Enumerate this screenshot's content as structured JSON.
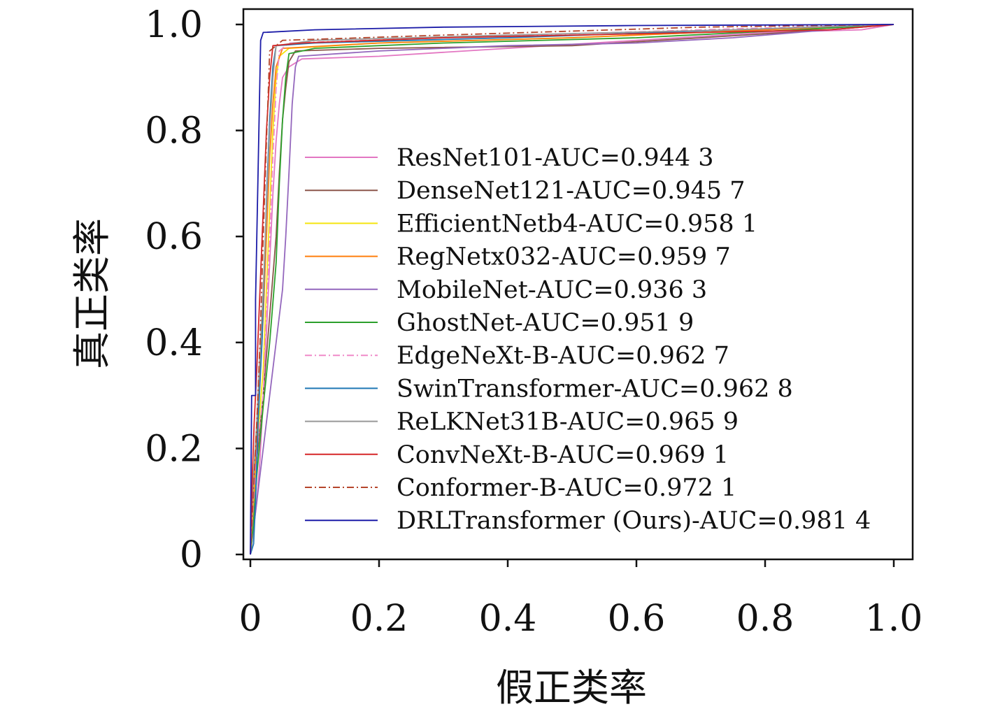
{
  "chart_data": {
    "type": "line",
    "title": "",
    "xlabel": "假正类率",
    "ylabel": "真正类率",
    "xlim": [
      0,
      1.0
    ],
    "ylim": [
      0,
      1.0
    ],
    "x_ticks": [
      "0",
      "0.2",
      "0.4",
      "0.6",
      "0.8",
      "1.0"
    ],
    "y_ticks": [
      "0",
      "0.2",
      "0.4",
      "0.6",
      "0.8",
      "1.0"
    ],
    "grid": false,
    "legend_position": "lower-right",
    "series": [
      {
        "name": "ResNet101-AUC=0.944 3",
        "color": "#e377c2",
        "dash": "solid",
        "points": [
          [
            0,
            0
          ],
          [
            0.005,
            0.05
          ],
          [
            0.01,
            0.1
          ],
          [
            0.015,
            0.18
          ],
          [
            0.02,
            0.3
          ],
          [
            0.025,
            0.42
          ],
          [
            0.03,
            0.55
          ],
          [
            0.035,
            0.68
          ],
          [
            0.04,
            0.78
          ],
          [
            0.045,
            0.85
          ],
          [
            0.05,
            0.9
          ],
          [
            0.06,
            0.92
          ],
          [
            0.08,
            0.935
          ],
          [
            0.2,
            0.94
          ],
          [
            0.4,
            0.955
          ],
          [
            0.6,
            0.97
          ],
          [
            0.8,
            0.985
          ],
          [
            0.95,
            0.99
          ],
          [
            1,
            1
          ]
        ]
      },
      {
        "name": "DenseNet121-AUC=0.945 7",
        "color": "#8c564b",
        "dash": "solid",
        "points": [
          [
            0,
            0
          ],
          [
            0.005,
            0.08
          ],
          [
            0.01,
            0.18
          ],
          [
            0.02,
            0.3
          ],
          [
            0.03,
            0.45
          ],
          [
            0.04,
            0.6
          ],
          [
            0.045,
            0.72
          ],
          [
            0.05,
            0.82
          ],
          [
            0.055,
            0.88
          ],
          [
            0.06,
            0.93
          ],
          [
            0.07,
            0.95
          ],
          [
            0.2,
            0.955
          ],
          [
            0.5,
            0.96
          ],
          [
            0.7,
            0.975
          ],
          [
            0.9,
            0.99
          ],
          [
            1,
            1
          ]
        ]
      },
      {
        "name": "EfficientNetb4-AUC=0.958 1",
        "color": "#f5e50f",
        "dash": "solid",
        "points": [
          [
            0,
            0
          ],
          [
            0.005,
            0.1
          ],
          [
            0.01,
            0.2
          ],
          [
            0.02,
            0.35
          ],
          [
            0.025,
            0.5
          ],
          [
            0.03,
            0.65
          ],
          [
            0.035,
            0.8
          ],
          [
            0.04,
            0.9
          ],
          [
            0.045,
            0.94
          ],
          [
            0.06,
            0.955
          ],
          [
            0.2,
            0.965
          ],
          [
            0.5,
            0.975
          ],
          [
            0.8,
            0.99
          ],
          [
            1,
            1
          ]
        ]
      },
      {
        "name": "RegNetx032-AUC=0.959 7",
        "color": "#ff7f0e",
        "dash": "solid",
        "points": [
          [
            0,
            0
          ],
          [
            0.005,
            0.12
          ],
          [
            0.01,
            0.22
          ],
          [
            0.015,
            0.33
          ],
          [
            0.02,
            0.45
          ],
          [
            0.025,
            0.6
          ],
          [
            0.03,
            0.75
          ],
          [
            0.035,
            0.85
          ],
          [
            0.04,
            0.92
          ],
          [
            0.05,
            0.955
          ],
          [
            0.2,
            0.965
          ],
          [
            0.5,
            0.975
          ],
          [
            0.8,
            0.99
          ],
          [
            1,
            1
          ]
        ]
      },
      {
        "name": "MobileNet-AUC=0.936 3",
        "color": "#9467bd",
        "dash": "solid",
        "points": [
          [
            0,
            0
          ],
          [
            0.01,
            0.1
          ],
          [
            0.02,
            0.2
          ],
          [
            0.03,
            0.3
          ],
          [
            0.04,
            0.4
          ],
          [
            0.05,
            0.5
          ],
          [
            0.055,
            0.6
          ],
          [
            0.06,
            0.72
          ],
          [
            0.065,
            0.85
          ],
          [
            0.07,
            0.92
          ],
          [
            0.075,
            0.94
          ],
          [
            0.2,
            0.95
          ],
          [
            0.4,
            0.96
          ],
          [
            0.6,
            0.965
          ],
          [
            0.75,
            0.975
          ],
          [
            0.9,
            0.99
          ],
          [
            1,
            1
          ]
        ]
      },
      {
        "name": "GhostNet-AUC=0.951 9",
        "color": "#2ca02c",
        "dash": "solid",
        "points": [
          [
            0,
            0
          ],
          [
            0.005,
            0.06
          ],
          [
            0.01,
            0.15
          ],
          [
            0.02,
            0.28
          ],
          [
            0.03,
            0.4
          ],
          [
            0.04,
            0.55
          ],
          [
            0.045,
            0.7
          ],
          [
            0.05,
            0.82
          ],
          [
            0.055,
            0.9
          ],
          [
            0.06,
            0.945
          ],
          [
            0.1,
            0.955
          ],
          [
            0.3,
            0.965
          ],
          [
            0.6,
            0.975
          ],
          [
            0.85,
            0.99
          ],
          [
            1,
            1
          ]
        ]
      },
      {
        "name": "EdgeNeXt-B-AUC=0.962 7",
        "color": "#f08ac8",
        "dash": "dashdot",
        "points": [
          [
            0,
            0
          ],
          [
            0.005,
            0.1
          ],
          [
            0.01,
            0.2
          ],
          [
            0.02,
            0.3
          ],
          [
            0.025,
            0.45
          ],
          [
            0.03,
            0.6
          ],
          [
            0.035,
            0.75
          ],
          [
            0.04,
            0.88
          ],
          [
            0.045,
            0.95
          ],
          [
            0.06,
            0.965
          ],
          [
            0.3,
            0.975
          ],
          [
            0.7,
            0.99
          ],
          [
            1,
            1
          ]
        ]
      },
      {
        "name": "SwinTransformer-AUC=0.962 8",
        "color": "#1f77b4",
        "dash": "solid",
        "points": [
          [
            0,
            0
          ],
          [
            0.005,
            0.02
          ],
          [
            0.008,
            0.1
          ],
          [
            0.012,
            0.25
          ],
          [
            0.018,
            0.4
          ],
          [
            0.022,
            0.55
          ],
          [
            0.026,
            0.7
          ],
          [
            0.03,
            0.82
          ],
          [
            0.035,
            0.92
          ],
          [
            0.04,
            0.96
          ],
          [
            0.1,
            0.965
          ],
          [
            0.4,
            0.975
          ],
          [
            0.75,
            0.99
          ],
          [
            1,
            1
          ]
        ]
      },
      {
        "name": "ReLKNet31B-AUC=0.965 9",
        "color": "#999999",
        "dash": "solid",
        "points": [
          [
            0,
            0
          ],
          [
            0.005,
            0.15
          ],
          [
            0.01,
            0.25
          ],
          [
            0.015,
            0.38
          ],
          [
            0.02,
            0.5
          ],
          [
            0.025,
            0.65
          ],
          [
            0.03,
            0.8
          ],
          [
            0.035,
            0.9
          ],
          [
            0.04,
            0.96
          ],
          [
            0.1,
            0.97
          ],
          [
            0.4,
            0.98
          ],
          [
            0.75,
            0.99
          ],
          [
            1,
            1
          ]
        ]
      },
      {
        "name": "ConvNeXt-B-AUC=0.969 1",
        "color": "#d62728",
        "dash": "solid",
        "points": [
          [
            0,
            0
          ],
          [
            0.003,
            0.15
          ],
          [
            0.006,
            0.25
          ],
          [
            0.01,
            0.35
          ],
          [
            0.015,
            0.5
          ],
          [
            0.02,
            0.65
          ],
          [
            0.025,
            0.8
          ],
          [
            0.03,
            0.9
          ],
          [
            0.035,
            0.96
          ],
          [
            0.08,
            0.965
          ],
          [
            0.3,
            0.975
          ],
          [
            0.7,
            0.985
          ],
          [
            0.9,
            0.99
          ],
          [
            1,
            1
          ]
        ]
      },
      {
        "name": "Conformer-B-AUC=0.972 1",
        "color": "#b5452b",
        "dash": "dashdot",
        "points": [
          [
            0,
            0
          ],
          [
            0.005,
            0.12
          ],
          [
            0.01,
            0.25
          ],
          [
            0.015,
            0.4
          ],
          [
            0.02,
            0.6
          ],
          [
            0.025,
            0.78
          ],
          [
            0.028,
            0.88
          ],
          [
            0.03,
            0.95
          ],
          [
            0.05,
            0.97
          ],
          [
            0.3,
            0.98
          ],
          [
            0.7,
            0.995
          ],
          [
            1,
            1
          ]
        ]
      },
      {
        "name": "DRLTransformer (Ours)-AUC=0.981 4",
        "color": "#1c1ca8",
        "dash": "solid",
        "points": [
          [
            0,
            0
          ],
          [
            0.002,
            0.3
          ],
          [
            0.008,
            0.3
          ],
          [
            0.008,
            0.48
          ],
          [
            0.01,
            0.6
          ],
          [
            0.012,
            0.72
          ],
          [
            0.014,
            0.85
          ],
          [
            0.016,
            0.97
          ],
          [
            0.02,
            0.985
          ],
          [
            0.1,
            0.99
          ],
          [
            0.3,
            0.995
          ],
          [
            0.6,
            0.998
          ],
          [
            1,
            1
          ]
        ]
      }
    ]
  }
}
